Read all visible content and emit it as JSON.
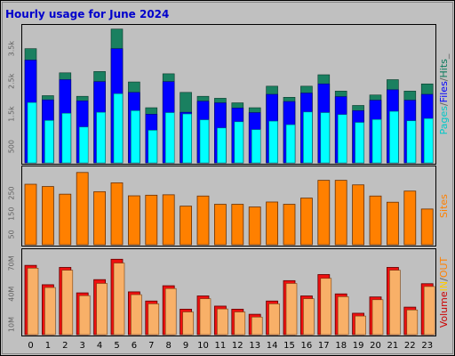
{
  "chart_data": {
    "type": "bar",
    "title": "Hourly usage for June 2024",
    "categories": [
      "0",
      "1",
      "2",
      "3",
      "4",
      "5",
      "6",
      "7",
      "8",
      "9",
      "10",
      "11",
      "12",
      "13",
      "14",
      "15",
      "16",
      "17",
      "18",
      "19",
      "20",
      "21",
      "22",
      "23"
    ],
    "panels": [
      {
        "name": "requests",
        "ylim": [
          0,
          4200
        ],
        "yticks": [
          "500",
          "1.5k",
          "2.5k",
          "3.5k"
        ],
        "ytick_values": [
          500,
          1500,
          2500,
          3500
        ],
        "legend": [
          {
            "text": "Pages",
            "color": "#00c8c8"
          },
          {
            "text": "/",
            "color": "#606060"
          },
          {
            "text": "Files",
            "color": "#0000ff"
          },
          {
            "text": "/",
            "color": "#606060"
          },
          {
            "text": "Hits",
            "color": "#0a7a5c"
          },
          {
            "text": "_",
            "color": "#606060"
          }
        ],
        "series": [
          {
            "name": "Hits",
            "color": "#1a8060",
            "values": [
              3500,
              2060,
              2760,
              2040,
              2800,
              4100,
              2480,
              1690,
              2730,
              2160,
              2040,
              1980,
              1840,
              1690,
              2350,
              2010,
              2350,
              2700,
              2200,
              1760,
              2080,
              2550,
              2200,
              2420
            ]
          },
          {
            "name": "Files",
            "color": "#0000ff",
            "values": [
              3150,
              1930,
              2550,
              1900,
              2490,
              3500,
              2160,
              1490,
              2490,
              1550,
              1890,
              1840,
              1680,
              1540,
              2100,
              1880,
              2140,
              2420,
              2030,
              1600,
              1920,
              2240,
              1920,
              2100
            ]
          },
          {
            "name": "Pages",
            "color": "#00ffff",
            "values": [
              1850,
              1300,
              1520,
              1100,
              1550,
              2120,
              1600,
              1000,
              1540,
              1500,
              1320,
              1070,
              1260,
              1020,
              1280,
              1170,
              1560,
              1540,
              1480,
              1240,
              1330,
              1580,
              1290,
              1360
            ]
          }
        ]
      },
      {
        "name": "sites",
        "ylim": [
          0,
          375
        ],
        "yticks": [
          "50",
          "150",
          "250"
        ],
        "ytick_values": [
          50,
          150,
          250
        ],
        "legend": [
          {
            "text": "Sites",
            "color": "#ff8000"
          }
        ],
        "series": [
          {
            "name": "Sites",
            "color": "#ff8000",
            "values": [
              293,
              282,
              245,
              350,
              257,
              300,
              237,
              240,
              242,
              187,
              236,
              196,
              196,
              183,
              207,
              196,
              226,
              312,
              312,
              290,
              236,
              206,
              260,
              173
            ]
          }
        ]
      },
      {
        "name": "volume",
        "ylim": [
          0,
          83
        ],
        "yticks": [
          "10M",
          "40M",
          "70M"
        ],
        "ytick_values": [
          10,
          40,
          70
        ],
        "legend": [
          {
            "text": "Volume",
            "color": "#cc0000"
          },
          {
            "text": "IN",
            "color": "#ffcc00"
          },
          {
            "text": "/",
            "color": "#606060"
          },
          {
            "text": "OUT",
            "color": "#ff8000"
          }
        ],
        "series": [
          {
            "name": "Volume",
            "color": "#ee1010",
            "values": [
              68,
              49,
              66,
              41,
              54,
              74,
              42,
              33,
              48,
              25,
              38,
              28,
              25,
              20,
              33,
              53,
              38,
              59,
              40,
              21,
              37,
              66,
              27,
              50
            ]
          },
          {
            "name": "OUT",
            "color": "#f8b068",
            "values": [
              67,
              48,
              65,
              40,
              52,
              72,
              41,
              32,
              47,
              24,
              37,
              27,
              24,
              19,
              32,
              52,
              37,
              57,
              39,
              20,
              36,
              65,
              26,
              49
            ]
          }
        ]
      }
    ]
  }
}
